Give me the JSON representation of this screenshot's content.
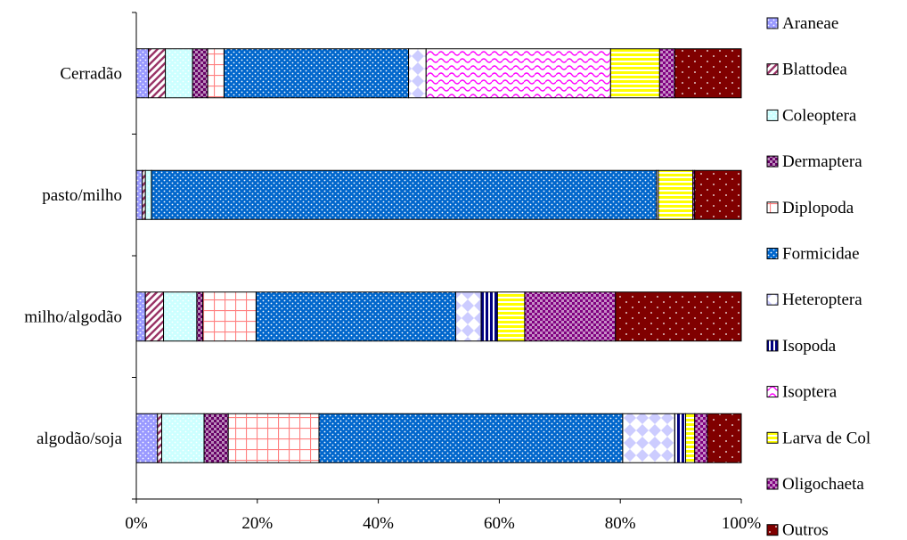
{
  "chart_data": {
    "type": "bar",
    "orientation": "horizontal",
    "stacked": "percent",
    "categories": [
      "Cerradão",
      "pasto/milho",
      "milho/algodão",
      "algodão/soja"
    ],
    "xlim": [
      0,
      100
    ],
    "xticks": [
      "0%",
      "20%",
      "40%",
      "60%",
      "80%",
      "100%"
    ],
    "grid": false,
    "legend_position": "right",
    "series": [
      {
        "name": "Araneae",
        "color": "#9999ff",
        "pattern": "dots",
        "values": [
          2.0,
          1.0,
          1.5,
          3.5
        ]
      },
      {
        "name": "Blattodea",
        "color": "#993366",
        "pattern": "diagonal",
        "values": [
          2.8,
          0.5,
          3.0,
          0.7
        ]
      },
      {
        "name": "Coleoptera",
        "color": "#ccffff",
        "pattern": "dots",
        "values": [
          4.5,
          1.0,
          5.5,
          7.0
        ]
      },
      {
        "name": "Dermaptera",
        "color": "#660066",
        "pattern": "checker",
        "values": [
          2.5,
          0.0,
          1.0,
          4.0
        ]
      },
      {
        "name": "Diplopoda",
        "color": "#ff8080",
        "pattern": "grid",
        "values": [
          2.7,
          0.0,
          8.8,
          15.0
        ]
      },
      {
        "name": "Formicidae",
        "color": "#0066cc",
        "pattern": "dots",
        "values": [
          30.5,
          83.5,
          33.0,
          50.2
        ]
      },
      {
        "name": "Heteroptera",
        "color": "#ccccff",
        "pattern": "diamond",
        "values": [
          2.9,
          0.3,
          4.2,
          8.6
        ]
      },
      {
        "name": "Isopoda",
        "color": "#000080",
        "pattern": "vertical",
        "values": [
          0.0,
          0.0,
          2.7,
          1.8
        ]
      },
      {
        "name": "Isoptera",
        "color": "#ff00ff",
        "pattern": "wave",
        "values": [
          30.5,
          0.0,
          0.0,
          0.0
        ]
      },
      {
        "name": "Larva de Col",
        "color": "#ffff00",
        "pattern": "horizontal",
        "values": [
          8.1,
          5.7,
          4.5,
          1.5
        ]
      },
      {
        "name": "Oligochaeta",
        "color": "#800080",
        "pattern": "checker",
        "values": [
          2.5,
          0.3,
          15.0,
          2.1
        ]
      },
      {
        "name": "Outros",
        "color": "#800000",
        "pattern": "sparse-dots",
        "values": [
          11.0,
          7.7,
          20.8,
          5.6
        ]
      }
    ]
  }
}
